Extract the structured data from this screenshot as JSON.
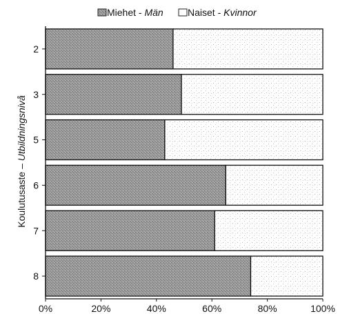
{
  "chart_data": {
    "type": "bar",
    "orientation": "horizontal",
    "stacked": true,
    "percent_stacked": true,
    "categories": [
      "2",
      "3",
      "5",
      "6",
      "7",
      "8"
    ],
    "series": [
      {
        "name": "Miehet - Män",
        "name_parts": {
          "fi": "Miehet",
          "sep": " - ",
          "sv": "Män"
        },
        "values": [
          46,
          49,
          43,
          65,
          61,
          74
        ],
        "color": "#8c8c8c",
        "pattern": "dense-dots"
      },
      {
        "name": "Naiset - Kvinnor",
        "name_parts": {
          "fi": "Naiset",
          "sep": " - ",
          "sv": "Kvinnor"
        },
        "values": [
          54,
          51,
          57,
          35,
          39,
          26
        ],
        "color": "#ffffff",
        "pattern": "sparse-dots"
      }
    ],
    "xlim": [
      0,
      100
    ],
    "x_ticks": [
      "0%",
      "20%",
      "40%",
      "60%",
      "80%",
      "100%"
    ],
    "ylabel_parts": {
      "fi": "Koulutusaste",
      "sep": " – ",
      "sv": "Utbildningsnivå"
    },
    "legend_position": "top",
    "grid": false
  }
}
